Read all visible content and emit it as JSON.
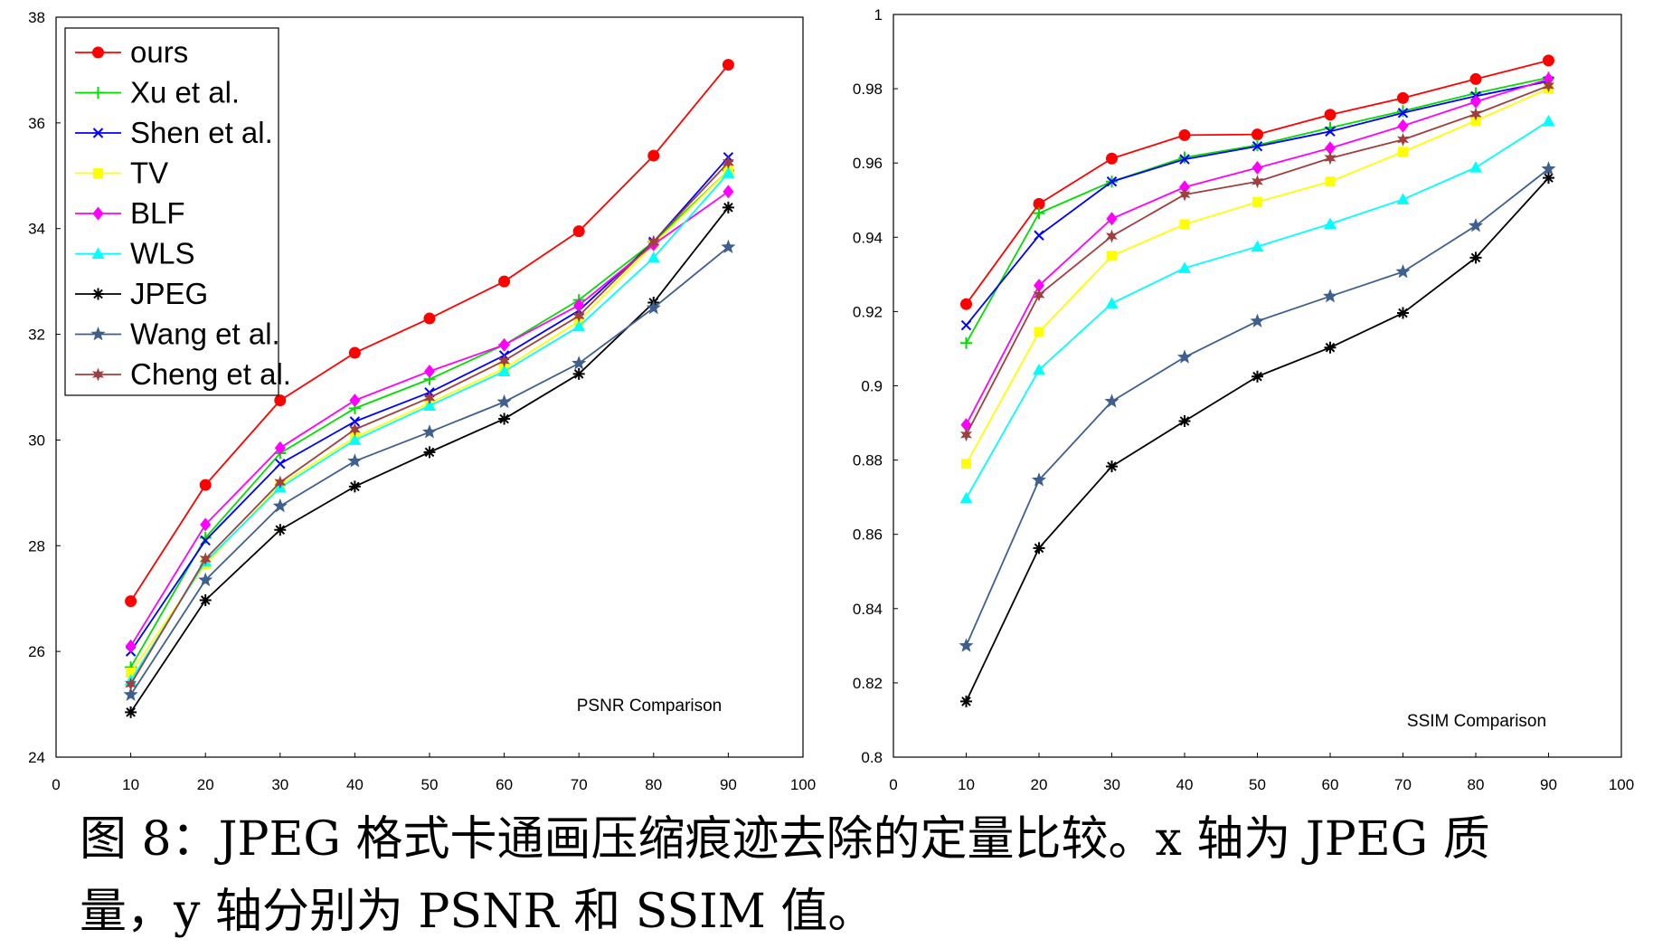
{
  "chart_data": [
    {
      "type": "line",
      "title": "PSNR Comparison",
      "xlim": [
        0,
        100
      ],
      "ylim": [
        24,
        38
      ],
      "x_ticks": [
        0,
        10,
        20,
        30,
        40,
        50,
        60,
        70,
        80,
        90,
        100
      ],
      "y_ticks": [
        24,
        26,
        28,
        30,
        32,
        34,
        36,
        38
      ],
      "legend_position": "top-left",
      "grid": false,
      "x": [
        10,
        20,
        30,
        40,
        50,
        60,
        70,
        80,
        90
      ],
      "series": [
        {
          "name": "ours",
          "color": "#ff0000",
          "marker": "circle",
          "values": [
            26.95,
            29.15,
            30.75,
            31.65,
            32.3,
            33.0,
            33.95,
            35.38,
            37.1
          ]
        },
        {
          "name": "Xu et al.",
          "color": "#00dd00",
          "marker": "plus",
          "values": [
            25.7,
            28.15,
            29.75,
            30.6,
            31.15,
            31.8,
            32.65,
            33.75,
            35.1
          ]
        },
        {
          "name": "Shen et al.",
          "color": "#0000ff",
          "marker": "x",
          "values": [
            26.0,
            28.1,
            29.55,
            30.35,
            30.9,
            31.6,
            32.45,
            33.75,
            35.35
          ]
        },
        {
          "name": "TV",
          "color": "#ffff00",
          "marker": "square",
          "values": [
            25.6,
            27.65,
            29.15,
            30.05,
            30.7,
            31.35,
            32.25,
            33.7,
            35.1
          ]
        },
        {
          "name": "BLF",
          "color": "#ff00ff",
          "marker": "diamond",
          "values": [
            26.1,
            28.4,
            29.85,
            30.75,
            31.3,
            31.8,
            32.55,
            33.7,
            34.7
          ]
        },
        {
          "name": "WLS",
          "color": "#00ffff",
          "marker": "triangle",
          "values": [
            25.45,
            27.7,
            29.1,
            30.0,
            30.65,
            31.3,
            32.15,
            33.45,
            35.05
          ]
        },
        {
          "name": "JPEG",
          "color": "#000000",
          "marker": "asterisk",
          "values": [
            24.85,
            26.97,
            28.3,
            29.12,
            29.77,
            30.4,
            31.25,
            32.6,
            34.4
          ]
        },
        {
          "name": "Wang et al.",
          "color": "#3f5f8f",
          "marker": "star",
          "values": [
            25.18,
            27.35,
            28.75,
            29.6,
            30.15,
            30.72,
            31.45,
            32.5,
            33.65
          ]
        },
        {
          "name": "Cheng et al.",
          "color": "#9f3f3f",
          "marker": "hexstar",
          "values": [
            25.38,
            27.75,
            29.2,
            30.2,
            30.8,
            31.5,
            32.35,
            33.75,
            35.25
          ]
        }
      ]
    },
    {
      "type": "line",
      "title": "SSIM Comparison",
      "xlim": [
        0,
        100
      ],
      "ylim": [
        0.8,
        1.0
      ],
      "x_ticks": [
        0,
        10,
        20,
        30,
        40,
        50,
        60,
        70,
        80,
        90,
        100
      ],
      "y_ticks": [
        0.8,
        0.82,
        0.84,
        0.86,
        0.88,
        0.9,
        0.92,
        0.94,
        0.96,
        0.98,
        1.0
      ],
      "y_tick_labels": [
        "0.8",
        "0.82",
        "0.84",
        "0.86",
        "0.88",
        "0.9",
        "0.92",
        "0.94",
        "0.96",
        "0.98",
        "1"
      ],
      "grid": false,
      "x": [
        10,
        20,
        30,
        40,
        50,
        60,
        70,
        80,
        90
      ],
      "series": [
        {
          "name": "ours",
          "color": "#ff0000",
          "marker": "circle",
          "values": [
            0.922,
            0.949,
            0.9612,
            0.9675,
            0.9677,
            0.973,
            0.9775,
            0.9826,
            0.9876
          ]
        },
        {
          "name": "Xu et al.",
          "color": "#00dd00",
          "marker": "plus",
          "values": [
            0.9115,
            0.9465,
            0.955,
            0.9615,
            0.9648,
            0.9695,
            0.974,
            0.9788,
            0.983
          ]
        },
        {
          "name": "Shen et al.",
          "color": "#0000ff",
          "marker": "x",
          "values": [
            0.9163,
            0.9405,
            0.955,
            0.961,
            0.9645,
            0.9685,
            0.9735,
            0.978,
            0.982
          ]
        },
        {
          "name": "TV",
          "color": "#ffff00",
          "marker": "square",
          "values": [
            0.879,
            0.9145,
            0.935,
            0.9435,
            0.9495,
            0.955,
            0.963,
            0.9714,
            0.98
          ]
        },
        {
          "name": "BLF",
          "color": "#ff00ff",
          "marker": "diamond",
          "values": [
            0.8895,
            0.927,
            0.945,
            0.9535,
            0.9587,
            0.964,
            0.97,
            0.9765,
            0.9826
          ]
        },
        {
          "name": "WLS",
          "color": "#00ffff",
          "marker": "triangle",
          "values": [
            0.8697,
            0.9043,
            0.9222,
            0.9317,
            0.9375,
            0.9436,
            0.9502,
            0.9588,
            0.9713
          ]
        },
        {
          "name": "JPEG",
          "color": "#000000",
          "marker": "asterisk",
          "values": [
            0.815,
            0.8563,
            0.8783,
            0.8905,
            0.9025,
            0.9103,
            0.9196,
            0.9345,
            0.956
          ]
        },
        {
          "name": "Wang et al.",
          "color": "#3f5f8f",
          "marker": "star",
          "values": [
            0.83,
            0.8746,
            0.8958,
            0.9077,
            0.9174,
            0.9241,
            0.9307,
            0.9431,
            0.9584
          ]
        },
        {
          "name": "Cheng et al.",
          "color": "#9f3f3f",
          "marker": "hexstar",
          "values": [
            0.8868,
            0.9245,
            0.9403,
            0.9515,
            0.955,
            0.9613,
            0.9663,
            0.9732,
            0.9808
          ]
        }
      ]
    }
  ],
  "caption": {
    "line1": "图 8：JPEG 格式卡通画压缩痕迹去除的定量比较。x 轴为 JPEG 质",
    "line2": "量，y 轴分别为 PSNR 和 SSIM 值。"
  }
}
